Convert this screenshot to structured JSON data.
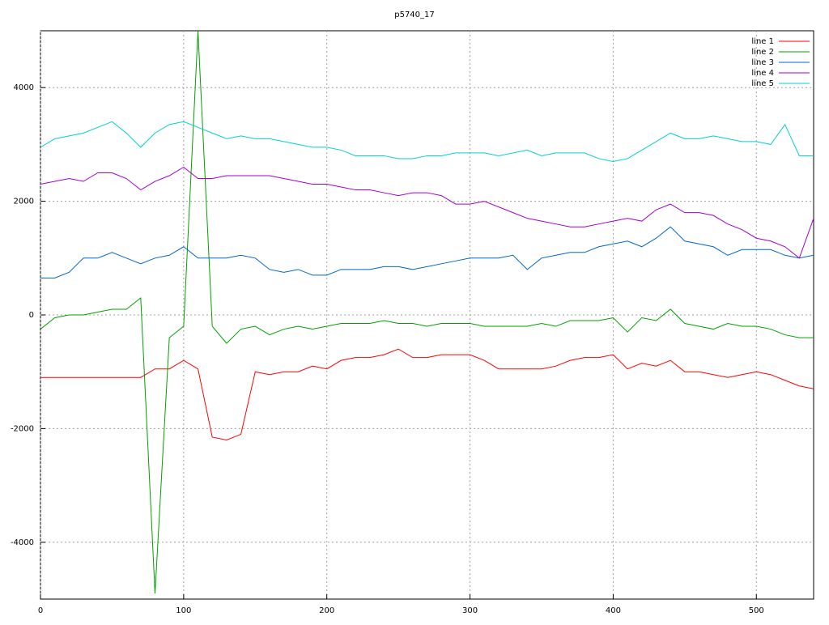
{
  "chart_data": {
    "type": "line",
    "title": "p5740_17",
    "x": [
      0,
      10,
      20,
      30,
      40,
      50,
      60,
      70,
      80,
      90,
      100,
      110,
      120,
      130,
      140,
      150,
      160,
      170,
      180,
      190,
      200,
      210,
      220,
      230,
      240,
      250,
      260,
      270,
      280,
      290,
      300,
      310,
      320,
      330,
      340,
      350,
      360,
      370,
      380,
      390,
      400,
      410,
      420,
      430,
      440,
      450,
      460,
      470,
      480,
      490,
      500,
      510,
      520,
      530,
      540
    ],
    "series": [
      {
        "name": "line 1",
        "color": "#ff0000",
        "values": [
          -1100,
          -1100,
          -1100,
          -1100,
          -1100,
          -1100,
          -1100,
          -1100,
          -950,
          -950,
          -800,
          -950,
          -2150,
          -2200,
          -2100,
          -1000,
          -1050,
          -1000,
          -1000,
          -900,
          -950,
          -800,
          -750,
          -750,
          -700,
          -600,
          -750,
          -750,
          -700,
          -700,
          -700,
          -800,
          -950,
          -950,
          -950,
          -950,
          -900,
          -800,
          -750,
          -750,
          -700,
          -950,
          -850,
          -900,
          -800,
          -1000,
          -1000,
          -1050,
          -1100,
          -1050,
          -1000,
          -1050,
          -1150,
          -1250,
          -1300
        ]
      },
      {
        "name": "line 2",
        "color": "#00a000",
        "values": [
          -250,
          -50,
          0,
          0,
          50,
          100,
          100,
          300,
          -4900,
          -400,
          -200,
          5000,
          -200,
          -500,
          -250,
          -200,
          -350,
          -250,
          -200,
          -250,
          -200,
          -150,
          -150,
          -150,
          -100,
          -150,
          -150,
          -200,
          -150,
          -150,
          -150,
          -200,
          -200,
          -200,
          -200,
          -150,
          -200,
          -100,
          -100,
          -100,
          -50,
          -300,
          -50,
          -100,
          100,
          -150,
          -200,
          -250,
          -150,
          -200,
          -200,
          -250,
          -350,
          -400,
          -400
        ]
      },
      {
        "name": "line 3",
        "color": "#0066cc",
        "values": [
          650,
          650,
          750,
          1000,
          1000,
          1100,
          1000,
          900,
          1000,
          1050,
          1200,
          1000,
          1000,
          1000,
          1050,
          1000,
          800,
          750,
          800,
          700,
          700,
          800,
          800,
          800,
          850,
          850,
          800,
          850,
          900,
          950,
          1000,
          1000,
          1000,
          1050,
          800,
          1000,
          1050,
          1100,
          1100,
          1200,
          1250,
          1300,
          1200,
          1350,
          1550,
          1300,
          1250,
          1200,
          1050,
          1150,
          1150,
          1150,
          1050,
          1000,
          1050
        ]
      },
      {
        "name": "line 4",
        "color": "#a000d0",
        "values": [
          2300,
          2350,
          2400,
          2350,
          2500,
          2500,
          2400,
          2200,
          2350,
          2450,
          2600,
          2400,
          2400,
          2450,
          2450,
          2450,
          2450,
          2400,
          2350,
          2300,
          2300,
          2250,
          2200,
          2200,
          2150,
          2100,
          2150,
          2150,
          2100,
          1950,
          1950,
          2000,
          1900,
          1800,
          1700,
          1650,
          1600,
          1550,
          1550,
          1600,
          1650,
          1700,
          1650,
          1850,
          1950,
          1800,
          1800,
          1750,
          1600,
          1500,
          1350,
          1300,
          1200,
          1000,
          1700
        ]
      },
      {
        "name": "line 5",
        "color": "#00d0d0",
        "values": [
          2950,
          3100,
          3150,
          3200,
          3300,
          3400,
          3200,
          2950,
          3200,
          3350,
          3400,
          3300,
          3200,
          3100,
          3150,
          3100,
          3100,
          3050,
          3000,
          2950,
          2950,
          2900,
          2800,
          2800,
          2800,
          2750,
          2750,
          2800,
          2800,
          2850,
          2850,
          2850,
          2800,
          2850,
          2900,
          2800,
          2850,
          2850,
          2850,
          2750,
          2700,
          2750,
          2900,
          3050,
          3200,
          3100,
          3100,
          3150,
          3100,
          3050,
          3050,
          3000,
          3350,
          2800,
          2800
        ]
      }
    ],
    "xlim": [
      0,
      540
    ],
    "ylim": [
      -5000,
      5000
    ],
    "xticks": [
      0,
      100,
      200,
      300,
      400,
      500
    ],
    "yticks": [
      -4000,
      -2000,
      0,
      2000,
      4000
    ],
    "grid": true,
    "legend": "top-right"
  }
}
